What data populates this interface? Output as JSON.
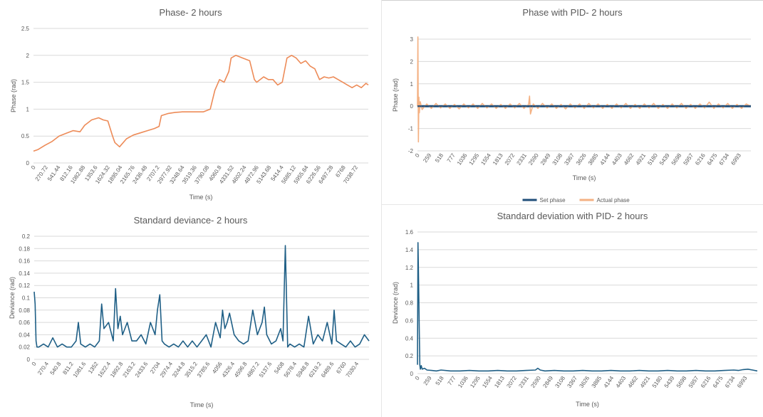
{
  "chart_data": [
    {
      "id": "c1",
      "type": "line",
      "title": "Phase- 2 hours",
      "xlabel": "Time (s)",
      "ylabel": "Phase (rad)",
      "xlim": [
        0,
        7200
      ],
      "ylim": [
        0,
        2.5
      ],
      "yticks": [
        "0",
        "0.5",
        "1",
        "1.5",
        "2",
        "2.5"
      ],
      "xticks": [
        "0",
        "270.72",
        "541.44",
        "812.16",
        "1082.88",
        "1353.6",
        "1624.32",
        "1895.04",
        "2165.76",
        "2436.48",
        "2707.2",
        "2977.92",
        "3248.64",
        "3519.36",
        "3790.08",
        "4060.8",
        "4331.52",
        "4602.24",
        "4872.96",
        "5143.68",
        "5414.4",
        "5685.12",
        "5955.84",
        "6226.56",
        "6497.28",
        "6768",
        "7038.72"
      ],
      "series": [
        {
          "color": "#ED8B58",
          "x": [
            0,
            100,
            250,
            400,
            550,
            700,
            850,
            1000,
            1100,
            1250,
            1400,
            1500,
            1600,
            1700,
            1750,
            1850,
            2000,
            2150,
            2300,
            2450,
            2600,
            2700,
            2750,
            2900,
            3050,
            3200,
            3350,
            3500,
            3650,
            3800,
            3900,
            4000,
            4100,
            4200,
            4250,
            4350,
            4500,
            4650,
            4750,
            4800,
            4950,
            5050,
            5150,
            5250,
            5350,
            5450,
            5550,
            5650,
            5750,
            5850,
            5950,
            6050,
            6150,
            6250,
            6350,
            6450,
            6550,
            6650,
            6750,
            6850,
            6950,
            7050,
            7150,
            7200
          ],
          "y": [
            0.22,
            0.25,
            0.33,
            0.4,
            0.5,
            0.55,
            0.6,
            0.58,
            0.7,
            0.8,
            0.84,
            0.8,
            0.78,
            0.5,
            0.38,
            0.3,
            0.45,
            0.52,
            0.56,
            0.6,
            0.64,
            0.68,
            0.88,
            0.92,
            0.94,
            0.95,
            0.95,
            0.95,
            0.95,
            1.0,
            1.35,
            1.55,
            1.5,
            1.7,
            1.95,
            2.0,
            1.95,
            1.9,
            1.55,
            1.5,
            1.6,
            1.55,
            1.55,
            1.45,
            1.5,
            1.95,
            2.0,
            1.95,
            1.85,
            1.9,
            1.8,
            1.75,
            1.55,
            1.6,
            1.58,
            1.6,
            1.55,
            1.5,
            1.45,
            1.4,
            1.45,
            1.4,
            1.48,
            1.45
          ]
        }
      ]
    },
    {
      "id": "c2",
      "type": "line",
      "title": "Phase with PID- 2 hours",
      "xlabel": "Time (s)",
      "ylabel": "Phase (rad)",
      "xlim": [
        0,
        7200
      ],
      "ylim": [
        -2,
        3
      ],
      "yticks": [
        "-2",
        "-1",
        "0",
        "1",
        "2",
        "3"
      ],
      "xticks": [
        "0",
        "259",
        "518",
        "777",
        "1036",
        "1295",
        "1554",
        "1813",
        "2072",
        "2331",
        "2590",
        "2849",
        "3108",
        "3367",
        "3626",
        "3885",
        "4144",
        "4403",
        "4662",
        "4921",
        "5180",
        "5439",
        "5698",
        "5957",
        "6216",
        "6475",
        "6734",
        "6993"
      ],
      "legend": [
        "Set phase",
        "Actual phase"
      ],
      "legend_position": "bottom",
      "series": [
        {
          "name": "Set phase",
          "color": "#1F4E79",
          "x": [
            0,
            7200
          ],
          "y": [
            0,
            0
          ]
        },
        {
          "name": "Actual phase",
          "color": "#F4B183",
          "x": [
            0,
            10,
            20,
            30,
            40,
            60,
            100,
            200,
            300,
            400,
            500,
            600,
            700,
            800,
            900,
            1000,
            1100,
            1200,
            1300,
            1400,
            1500,
            1600,
            1700,
            1800,
            1900,
            2000,
            2100,
            2200,
            2300,
            2400,
            2420,
            2440,
            2500,
            2600,
            2700,
            2800,
            2900,
            3000,
            3100,
            3200,
            3300,
            3400,
            3500,
            3600,
            3700,
            3800,
            3900,
            4000,
            4100,
            4200,
            4300,
            4400,
            4500,
            4600,
            4700,
            4800,
            4900,
            5000,
            5100,
            5200,
            5300,
            5400,
            5500,
            5600,
            5700,
            5800,
            5900,
            6000,
            6100,
            6200,
            6300,
            6400,
            6500,
            6600,
            6700,
            6800,
            6900,
            7000,
            7100,
            7200
          ],
          "y": [
            0,
            3.1,
            -1.6,
            0.4,
            -0.3,
            0.2,
            -0.15,
            0.1,
            -0.1,
            0.12,
            -0.08,
            0.1,
            -0.1,
            0.08,
            -0.12,
            0.1,
            -0.08,
            0.1,
            -0.1,
            0.12,
            -0.08,
            0.1,
            -0.1,
            0.08,
            -0.1,
            0.1,
            -0.08,
            0.12,
            -0.1,
            0.08,
            0.45,
            -0.35,
            0.1,
            -0.1,
            0.12,
            -0.08,
            0.1,
            -0.1,
            0.08,
            -0.12,
            0.1,
            -0.08,
            0.1,
            -0.1,
            0.12,
            -0.08,
            0.1,
            -0.1,
            0.08,
            -0.1,
            0.1,
            -0.08,
            0.12,
            -0.1,
            0.08,
            -0.1,
            0.1,
            -0.08,
            0.12,
            -0.1,
            0.08,
            -0.1,
            0.1,
            -0.08,
            0.12,
            -0.1,
            0.08,
            -0.1,
            0.1,
            -0.08,
            0.18,
            -0.1,
            0.1,
            -0.08,
            0.12,
            -0.1,
            0.08,
            -0.1,
            0.1,
            0
          ]
        }
      ]
    },
    {
      "id": "c3",
      "type": "line",
      "title": "Standard deviance- 2 hours",
      "xlabel": "Time (s)",
      "ylabel": "Deviance (rad)",
      "xlim": [
        0,
        7200
      ],
      "ylim": [
        0,
        0.2
      ],
      "yticks": [
        "0",
        "0.02",
        "0.04",
        "0.06",
        "0.08",
        "0.1",
        "0.12",
        "0.14",
        "0.16",
        "0.18",
        "0.2"
      ],
      "xticks": [
        "0",
        "270.4",
        "540.8",
        "811.2",
        "1081.6",
        "1352",
        "1622.4",
        "1892.8",
        "2163.2",
        "2433.6",
        "2704",
        "2974.4",
        "3244.8",
        "3515.2",
        "3785.6",
        "4056",
        "4326.4",
        "4596.8",
        "4867.2",
        "5137.6",
        "5408",
        "5678.4",
        "5948.8",
        "6219.2",
        "6489.6",
        "6760",
        "7030.4"
      ],
      "series": [
        {
          "color": "#1F5F86",
          "x": [
            0,
            20,
            40,
            60,
            100,
            200,
            300,
            400,
            500,
            600,
            700,
            800,
            900,
            950,
            1000,
            1100,
            1200,
            1300,
            1400,
            1450,
            1500,
            1600,
            1700,
            1750,
            1800,
            1850,
            1900,
            2000,
            2100,
            2200,
            2300,
            2400,
            2500,
            2600,
            2650,
            2700,
            2750,
            2800,
            2900,
            3000,
            3100,
            3200,
            3300,
            3400,
            3500,
            3600,
            3700,
            3800,
            3850,
            3900,
            4000,
            4050,
            4100,
            4150,
            4200,
            4300,
            4400,
            4500,
            4600,
            4700,
            4800,
            4900,
            4950,
            5000,
            5100,
            5200,
            5300,
            5350,
            5400,
            5450,
            5500,
            5600,
            5700,
            5800,
            5900,
            6000,
            6100,
            6200,
            6300,
            6400,
            6450,
            6500,
            6600,
            6700,
            6800,
            6900,
            7000,
            7100,
            7200
          ],
          "y": [
            0.11,
            0.09,
            0.03,
            0.02,
            0.02,
            0.025,
            0.02,
            0.035,
            0.02,
            0.025,
            0.02,
            0.02,
            0.03,
            0.06,
            0.025,
            0.02,
            0.025,
            0.02,
            0.03,
            0.09,
            0.05,
            0.06,
            0.03,
            0.115,
            0.05,
            0.07,
            0.04,
            0.06,
            0.03,
            0.03,
            0.04,
            0.025,
            0.06,
            0.04,
            0.08,
            0.105,
            0.03,
            0.025,
            0.02,
            0.025,
            0.02,
            0.03,
            0.02,
            0.03,
            0.02,
            0.03,
            0.04,
            0.02,
            0.04,
            0.06,
            0.035,
            0.08,
            0.05,
            0.06,
            0.075,
            0.04,
            0.03,
            0.025,
            0.03,
            0.08,
            0.04,
            0.06,
            0.085,
            0.04,
            0.025,
            0.03,
            0.05,
            0.03,
            0.185,
            0.02,
            0.025,
            0.02,
            0.025,
            0.02,
            0.07,
            0.025,
            0.04,
            0.03,
            0.06,
            0.025,
            0.08,
            0.03,
            0.025,
            0.02,
            0.03,
            0.02,
            0.025,
            0.04,
            0.03
          ]
        }
      ]
    },
    {
      "id": "c4",
      "type": "line",
      "title": "Standard deviation with PID- 2 hours",
      "xlabel": "Time (s)",
      "ylabel": "Deviance (rad)",
      "xlim": [
        0,
        7200
      ],
      "ylim": [
        0,
        1.6
      ],
      "yticks": [
        "0",
        "0.2",
        "0.4",
        "0.6",
        "0.8",
        "1",
        "1.2",
        "1.4",
        "1.6"
      ],
      "xticks": [
        "0",
        "259",
        "518",
        "777",
        "1036",
        "1295",
        "1554",
        "1813",
        "2072",
        "2331",
        "2590",
        "2849",
        "3108",
        "3367",
        "3626",
        "3885",
        "4144",
        "4403",
        "4662",
        "4921",
        "5180",
        "5439",
        "5698",
        "5957",
        "6216",
        "6475",
        "6734",
        "6993"
      ],
      "series": [
        {
          "color": "#1F5F86",
          "x": [
            0,
            10,
            20,
            30,
            40,
            50,
            60,
            80,
            100,
            150,
            200,
            300,
            400,
            500,
            700,
            900,
            1100,
            1300,
            1500,
            1700,
            1900,
            2100,
            2300,
            2500,
            2550,
            2600,
            2700,
            2900,
            3100,
            3300,
            3500,
            3700,
            3900,
            4100,
            4300,
            4500,
            4700,
            4900,
            5100,
            5300,
            5500,
            5700,
            5900,
            6100,
            6300,
            6500,
            6700,
            6800,
            6900,
            7000,
            7100,
            7200
          ],
          "y": [
            0.1,
            1.48,
            1.2,
            0.8,
            0.45,
            0.1,
            0.05,
            0.09,
            0.05,
            0.06,
            0.04,
            0.035,
            0.03,
            0.04,
            0.03,
            0.03,
            0.035,
            0.03,
            0.03,
            0.035,
            0.03,
            0.03,
            0.035,
            0.04,
            0.06,
            0.04,
            0.03,
            0.035,
            0.03,
            0.03,
            0.035,
            0.03,
            0.03,
            0.035,
            0.03,
            0.03,
            0.035,
            0.03,
            0.03,
            0.035,
            0.03,
            0.03,
            0.035,
            0.03,
            0.03,
            0.035,
            0.04,
            0.035,
            0.045,
            0.05,
            0.04,
            0.03
          ]
        }
      ]
    }
  ]
}
